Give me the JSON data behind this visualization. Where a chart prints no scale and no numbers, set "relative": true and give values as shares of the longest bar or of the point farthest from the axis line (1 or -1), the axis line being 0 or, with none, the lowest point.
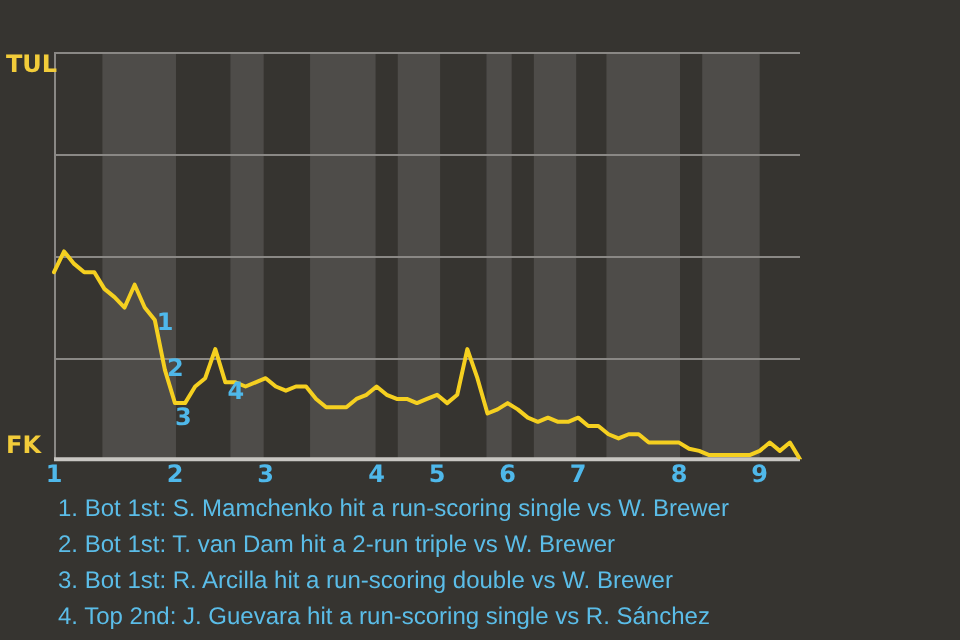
{
  "chart_data": {
    "type": "line",
    "relative": true,
    "categories": [
      "1",
      null,
      null,
      null,
      null,
      null,
      null,
      null,
      null,
      null,
      null,
      null,
      "2",
      null,
      null,
      null,
      null,
      null,
      null,
      null,
      null,
      "3",
      null,
      null,
      null,
      null,
      null,
      null,
      null,
      null,
      null,
      null,
      "4",
      null,
      null,
      null,
      null,
      null,
      "5",
      null,
      null,
      null,
      null,
      null,
      null,
      "6",
      null,
      null,
      null,
      null,
      null,
      null,
      "7",
      null,
      null,
      null,
      null,
      null,
      null,
      null,
      null,
      null,
      "8",
      null,
      null,
      null,
      null,
      null,
      null,
      null,
      "9",
      null,
      null,
      null,
      null
    ],
    "series": [
      {
        "color": "#f5d020",
        "values": [
          0.9,
          1,
          0.94,
          0.9,
          0.9,
          0.82,
          0.78,
          0.73,
          0.84,
          0.73,
          0.67,
          0.43,
          0.27,
          0.27,
          0.35,
          0.39,
          0.53,
          0.37,
          0.37,
          0.35,
          0.37,
          0.39,
          0.35,
          0.33,
          0.35,
          0.35,
          0.29,
          0.25,
          0.25,
          0.25,
          0.29,
          0.31,
          0.35,
          0.31,
          0.29,
          0.29,
          0.27,
          0.29,
          0.31,
          0.27,
          0.31,
          0.53,
          0.39,
          0.22,
          0.24,
          0.27,
          0.24,
          0.2,
          0.18,
          0.2,
          0.18,
          0.18,
          0.2,
          0.16,
          0.16,
          0.12,
          0.1,
          0.12,
          0.12,
          0.08,
          0.08,
          0.08,
          0.08,
          0.05,
          0.04,
          0.02,
          0.02,
          0.02,
          0.02,
          0.02,
          0.04,
          0.08,
          0.04,
          0.08,
          0
        ]
      }
    ],
    "ref_lines": [
      {
        "axis": "y",
        "value": 0.49,
        "color": "#8a8885"
      },
      {
        "axis": "y",
        "value": 0.98,
        "color": "#8a8885"
      },
      {
        "axis": "y",
        "value": 1.47,
        "color": "#8a8885"
      },
      {
        "axis": "y",
        "value": 1.96,
        "color": "#8a8885"
      }
    ],
    "legend": false,
    "marker": "none",
    "line_style": "solid",
    "annotations": [
      "TUL",
      "FK",
      "1",
      "2",
      "3",
      "4",
      "1. Bot 1st: S. Mamchenko hit a run-scoring single vs W. Brewer",
      "2. Bot 1st: T. van Dam hit a 2-run triple vs W. Brewer",
      "3. Bot 1st: R. Arcilla hit a run-scoring double vs W. Brewer",
      "4. Top 2nd: J. Guevara hit a run-scoring single vs R. Sánchez"
    ]
  }
}
